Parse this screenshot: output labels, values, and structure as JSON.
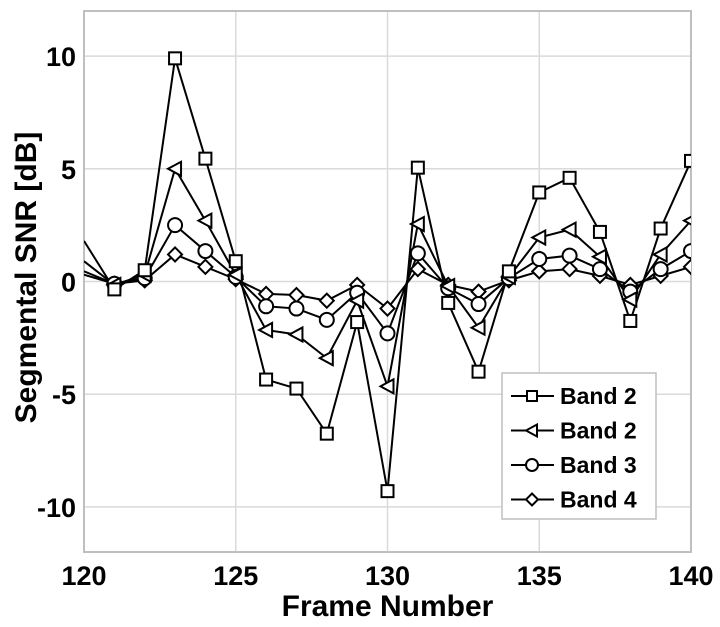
{
  "chart_data": {
    "type": "line",
    "title": "",
    "xlabel": "Frame Number",
    "ylabel": "Segmental SNR [dB]",
    "xlim": [
      120,
      140
    ],
    "ylim": [
      -12,
      12
    ],
    "xticks": [
      120,
      125,
      130,
      135,
      140
    ],
    "yticks": [
      -10,
      -5,
      0,
      5,
      10
    ],
    "grid": true,
    "legend_position": "lower right",
    "x": [
      120,
      121,
      122,
      123,
      124,
      125,
      126,
      127,
      128,
      129,
      130,
      131,
      132,
      133,
      134,
      135,
      136,
      137,
      138,
      139,
      140
    ],
    "series": [
      {
        "name": "Band 2",
        "marker": "square",
        "values": [
          1.8,
          -0.35,
          0.5,
          9.9,
          5.45,
          0.9,
          -4.35,
          -4.75,
          -6.75,
          -1.8,
          -9.3,
          5.05,
          -0.95,
          -4.0,
          0.45,
          3.95,
          4.6,
          2.2,
          -1.75,
          2.35,
          5.35
        ]
      },
      {
        "name": "Band 2",
        "marker": "triangle-left",
        "values": [
          0.9,
          -0.15,
          0.3,
          5.0,
          2.7,
          0.3,
          -2.15,
          -2.35,
          -3.4,
          -0.85,
          -4.65,
          2.55,
          -0.2,
          -2.05,
          0.2,
          1.95,
          2.3,
          1.1,
          -0.8,
          1.2,
          2.7
        ]
      },
      {
        "name": "Band 3",
        "marker": "circle",
        "values": [
          0.45,
          -0.1,
          0.15,
          2.5,
          1.35,
          0.2,
          -1.1,
          -1.2,
          -1.7,
          -0.5,
          -2.3,
          1.25,
          -0.3,
          -1.0,
          0.15,
          1.0,
          1.15,
          0.55,
          -0.45,
          0.55,
          1.35
        ]
      },
      {
        "name": "Band 4",
        "marker": "diamond",
        "values": [
          0.3,
          -0.1,
          0.05,
          1.2,
          0.65,
          0.1,
          -0.55,
          -0.6,
          -0.85,
          -0.15,
          -1.2,
          0.55,
          -0.15,
          -0.45,
          0.05,
          0.45,
          0.55,
          0.25,
          -0.15,
          0.25,
          0.65
        ]
      }
    ]
  },
  "colors": {
    "line": "#000000",
    "grid": "#dadada",
    "axes": "#bfbfbf",
    "background": "#ffffff"
  }
}
